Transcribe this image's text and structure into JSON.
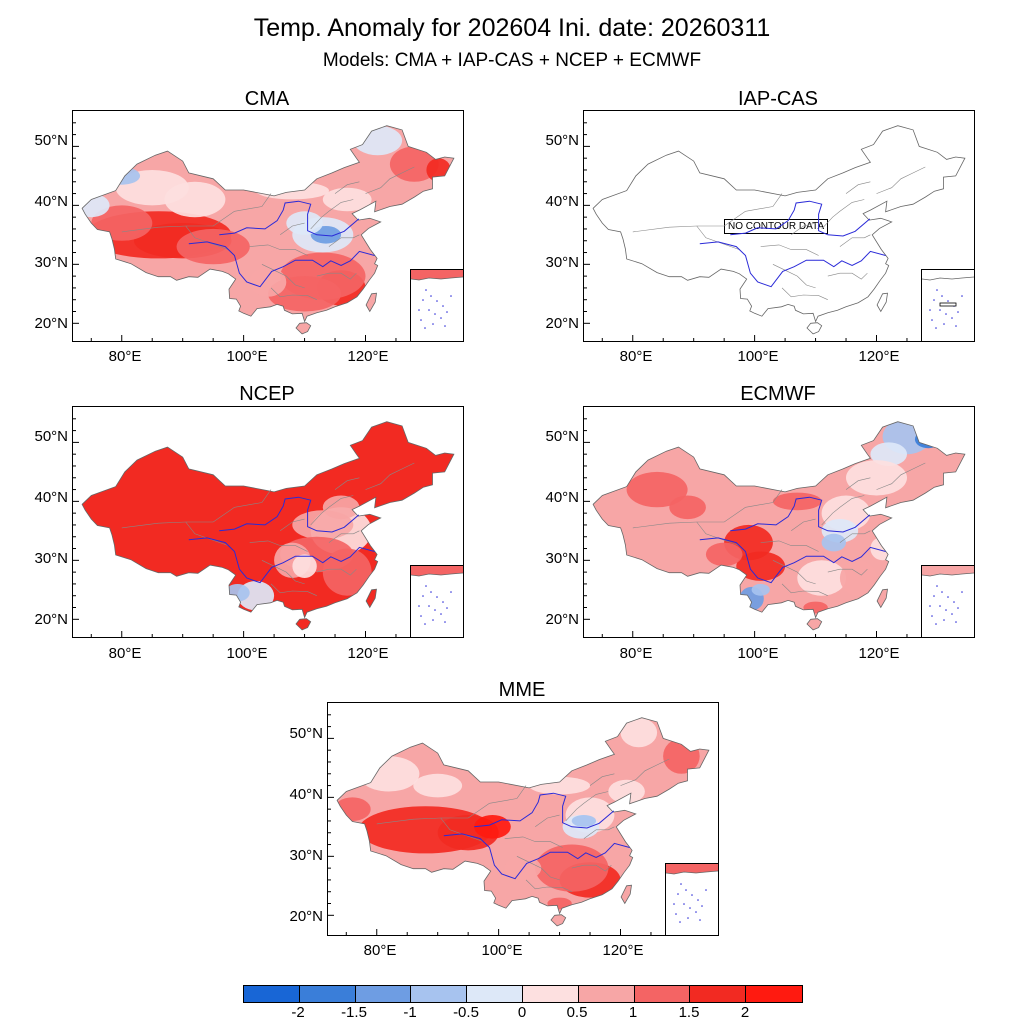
{
  "title": "Temp. Anomaly for 202604 Ini. date: 20260311",
  "subtitle": "Models: CMA + IAP-CAS + NCEP + ECMWF",
  "panels": [
    {
      "id": "cma",
      "title": "CMA",
      "has_data": true,
      "scheme": "cma"
    },
    {
      "id": "iap",
      "title": "IAP-CAS",
      "has_data": false,
      "no_data_text": "NO CONTOUR DATA"
    },
    {
      "id": "ncep",
      "title": "NCEP",
      "has_data": true,
      "scheme": "ncep"
    },
    {
      "id": "ecmwf",
      "title": "ECMWF",
      "has_data": true,
      "scheme": "ecmwf"
    },
    {
      "id": "mme",
      "title": "MME",
      "has_data": true,
      "scheme": "mme"
    }
  ],
  "axes": {
    "lat_labels": [
      "50°N",
      "40°N",
      "30°N",
      "20°N"
    ],
    "lon_labels": [
      "80°E",
      "100°E",
      "120°E"
    ]
  },
  "colorbar": {
    "labels": [
      "-2",
      "-1.5",
      "-1",
      "-0.5",
      "0",
      "0.5",
      "1",
      "1.5",
      "2"
    ],
    "colors": [
      "#1866d6",
      "#3a7ed9",
      "#6e9de3",
      "#a7c3ef",
      "#dde8f8",
      "#fde0e0",
      "#f7a6a6",
      "#f46464",
      "#f22a22",
      "#ff1a10"
    ]
  },
  "colors": {
    "river": "#2a2ad8",
    "border": "#888888"
  }
}
